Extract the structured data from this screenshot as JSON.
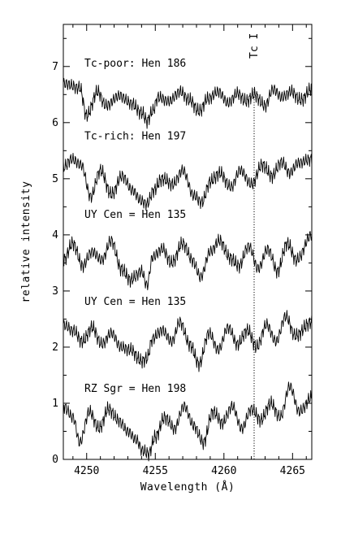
{
  "chart_data": {
    "type": "line",
    "xlabel": "Wavelength (Å)",
    "ylabel": "relative intensity",
    "xlim": [
      4248.3,
      4266.4
    ],
    "ylim": [
      0,
      7.75
    ],
    "xticks_major": [
      4250,
      4255,
      4260,
      4265
    ],
    "xtick_labels": [
      "4250",
      "4255",
      "4260",
      "4265"
    ],
    "yticks_major": [
      0,
      1,
      2,
      3,
      4,
      5,
      6,
      7
    ],
    "ytick_labels": [
      "0",
      "1",
      "2",
      "3",
      "4",
      "5",
      "6",
      "7"
    ],
    "grid": false,
    "marker": {
      "label": "Tc I",
      "x": 4262.2
    },
    "series": [
      {
        "name": "Tc-poor: Hen 186",
        "label_y": 7.0,
        "x": [
          4248.3,
          4249.5,
          4250.0,
          4250.8,
          4251.4,
          4252.4,
          4253.2,
          4254.0,
          4254.4,
          4254.8,
          4255.2,
          4256.0,
          4256.8,
          4257.5,
          4258.2,
          4258.8,
          4259.6,
          4260.3,
          4261.0,
          4261.6,
          4262.2,
          4263.0,
          4263.6,
          4264.2,
          4264.9,
          4265.6,
          4266.4
        ],
        "y": [
          6.7,
          6.62,
          6.12,
          6.55,
          6.3,
          6.48,
          6.35,
          6.18,
          6.03,
          6.2,
          6.45,
          6.38,
          6.55,
          6.4,
          6.2,
          6.42,
          6.55,
          6.35,
          6.52,
          6.38,
          6.5,
          6.3,
          6.6,
          6.45,
          6.55,
          6.4,
          6.6
        ]
      },
      {
        "name": "Tc-rich: Hen 197",
        "label_y": 5.7,
        "x": [
          4248.3,
          4248.9,
          4249.6,
          4250.3,
          4251.0,
          4251.8,
          4252.6,
          4253.3,
          4254.0,
          4254.4,
          4254.9,
          4255.5,
          4256.3,
          4257.0,
          4257.8,
          4258.4,
          4259.0,
          4259.7,
          4260.5,
          4261.2,
          4262.0,
          4262.8,
          4263.5,
          4264.2,
          4264.8,
          4265.4,
          4266.4
        ],
        "y": [
          5.2,
          5.35,
          5.25,
          4.68,
          5.15,
          4.72,
          5.05,
          4.8,
          4.6,
          4.55,
          4.8,
          5.0,
          4.9,
          5.15,
          4.7,
          4.58,
          4.95,
          5.1,
          4.85,
          5.15,
          4.9,
          5.25,
          5.05,
          5.3,
          5.1,
          5.28,
          5.35
        ]
      },
      {
        "name": "UY Cen = Hen 135",
        "label_y": 4.3,
        "x": [
          4248.3,
          4249.0,
          4249.7,
          4250.4,
          4251.1,
          4251.8,
          4252.5,
          4253.2,
          4254.0,
          4254.4,
          4254.8,
          4255.5,
          4256.2,
          4257.0,
          4257.7,
          4258.3,
          4259.0,
          4259.7,
          4260.4,
          4261.1,
          4261.8,
          4262.5,
          4263.2,
          4263.9,
          4264.6,
          4265.3,
          4266.4
        ],
        "y": [
          3.55,
          3.85,
          3.45,
          3.7,
          3.55,
          3.9,
          3.4,
          3.2,
          3.35,
          3.1,
          3.6,
          3.75,
          3.5,
          3.85,
          3.55,
          3.25,
          3.7,
          3.9,
          3.6,
          3.45,
          3.8,
          3.4,
          3.75,
          3.35,
          3.85,
          3.55,
          4.0
        ]
      },
      {
        "name": "UY Cen = Hen 135",
        "label_y": 2.75,
        "x": [
          4248.3,
          4249.0,
          4249.7,
          4250.4,
          4251.1,
          4251.8,
          4252.5,
          4253.2,
          4254.0,
          4254.4,
          4254.8,
          4255.5,
          4256.2,
          4256.8,
          4257.5,
          4258.2,
          4258.9,
          4259.6,
          4260.3,
          4261.0,
          4261.7,
          4262.4,
          4263.1,
          4263.8,
          4264.5,
          4265.2,
          4266.4
        ],
        "y": [
          2.4,
          2.3,
          2.1,
          2.35,
          2.05,
          2.25,
          2.0,
          1.95,
          1.75,
          1.8,
          2.15,
          2.3,
          2.1,
          2.45,
          2.05,
          1.7,
          2.25,
          1.95,
          2.35,
          2.05,
          2.3,
          2.0,
          2.4,
          2.1,
          2.55,
          2.2,
          2.45
        ]
      },
      {
        "name": "RZ Sgr = Hen 198",
        "label_y": 1.2,
        "x": [
          4248.3,
          4249.0,
          4249.5,
          4250.2,
          4250.9,
          4251.6,
          4252.3,
          4253.0,
          4253.6,
          4254.1,
          4254.5,
          4255.0,
          4255.7,
          4256.4,
          4257.1,
          4257.8,
          4258.5,
          4259.2,
          4259.9,
          4260.6,
          4261.3,
          4262.0,
          4262.7,
          4263.4,
          4264.1,
          4264.8,
          4265.5,
          4266.4
        ],
        "y": [
          0.95,
          0.75,
          0.3,
          0.85,
          0.55,
          0.9,
          0.7,
          0.5,
          0.35,
          0.15,
          0.1,
          0.4,
          0.75,
          0.55,
          0.95,
          0.6,
          0.3,
          0.85,
          0.65,
          0.95,
          0.55,
          0.9,
          0.7,
          1.0,
          0.75,
          1.3,
          0.85,
          1.1
        ]
      }
    ]
  }
}
